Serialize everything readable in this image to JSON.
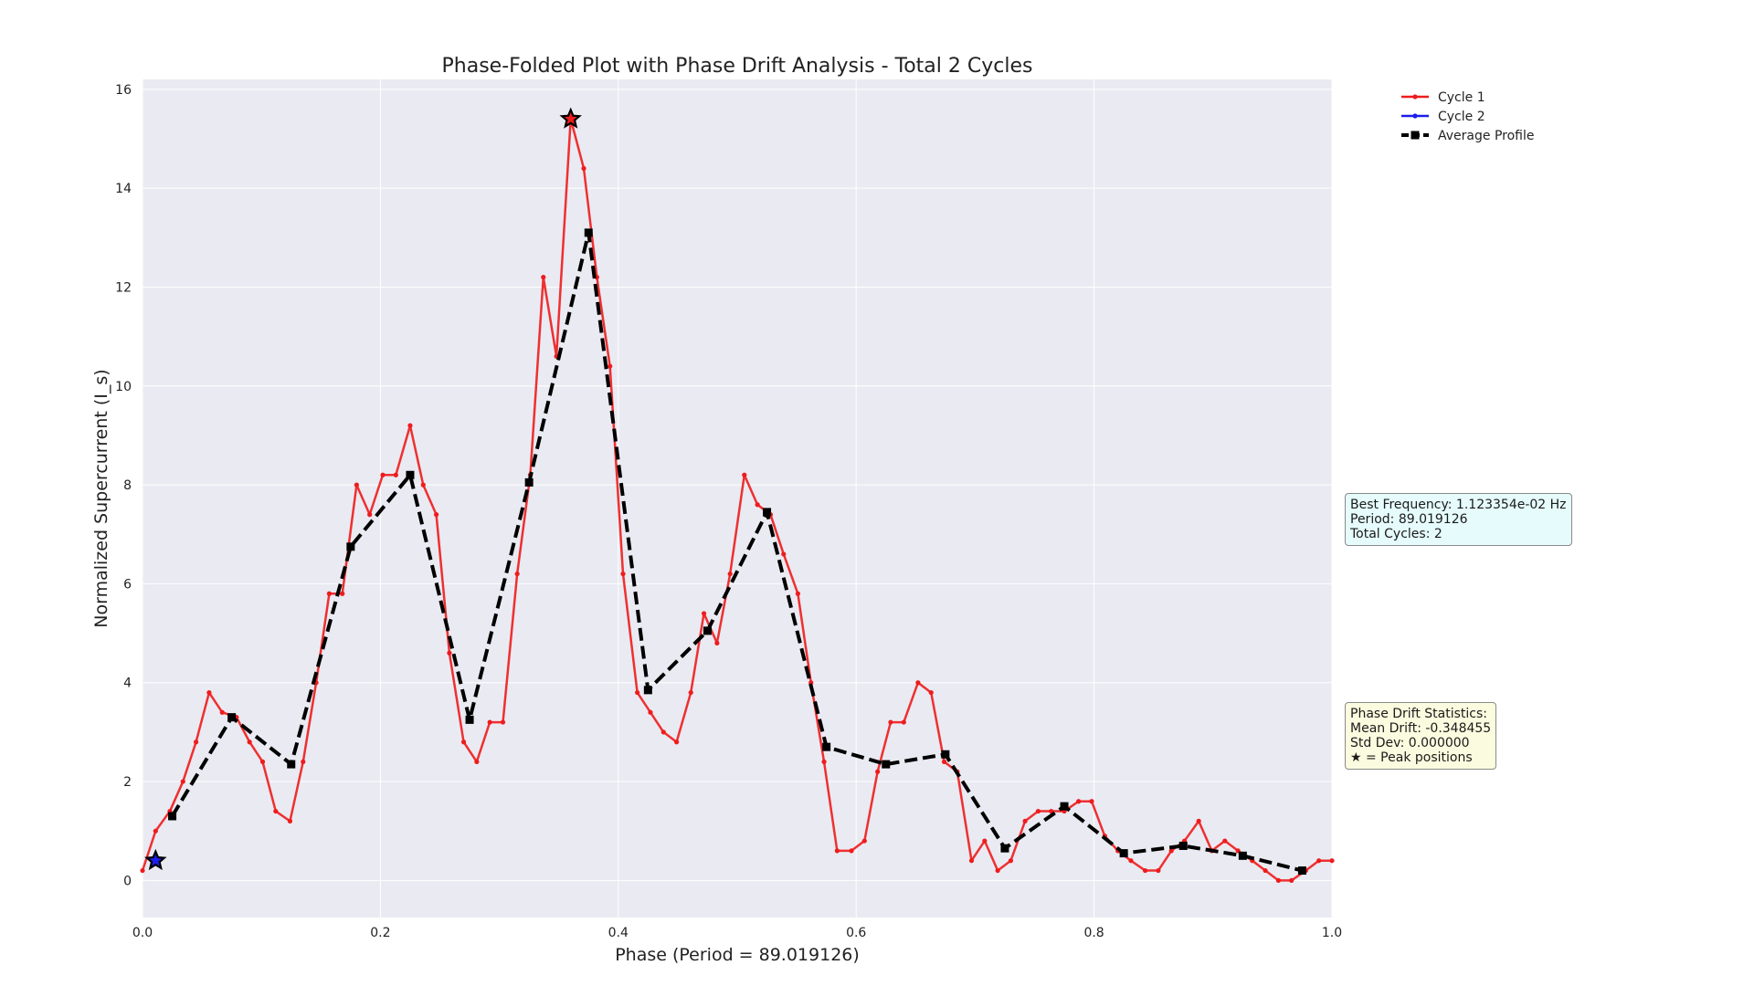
{
  "chart_data": {
    "type": "line",
    "title": "Phase-Folded Plot with Phase Drift Analysis - Total 2 Cycles",
    "xlabel": "Phase (Period = 89.019126)",
    "ylabel": "Normalized Supercurrent (I_s)",
    "xlim": [
      0.0,
      1.0
    ],
    "ylim": [
      -0.75,
      16.2
    ],
    "xticks": [
      "0.0",
      "0.2",
      "0.4",
      "0.6",
      "0.8",
      "1.0"
    ],
    "xtick_values": [
      0.0,
      0.2,
      0.4,
      0.6,
      0.8,
      1.0
    ],
    "yticks": [
      "0",
      "2",
      "4",
      "6",
      "8",
      "10",
      "12",
      "14",
      "16"
    ],
    "ytick_values": [
      0,
      2,
      4,
      6,
      8,
      10,
      12,
      14,
      16
    ],
    "grid": true,
    "legend_position": "top-right outside plot",
    "series": [
      {
        "name": "Cycle 1",
        "color": "#ee1c1c",
        "style": "solid-dot",
        "points": [
          [
            0.0,
            0.2
          ],
          [
            0.011,
            1.0
          ],
          [
            0.023,
            1.4
          ],
          [
            0.034,
            2.0
          ],
          [
            0.045,
            2.8
          ],
          [
            0.056,
            3.8
          ],
          [
            0.067,
            3.4
          ],
          [
            0.079,
            3.3
          ],
          [
            0.09,
            2.8
          ],
          [
            0.101,
            2.4
          ],
          [
            0.112,
            1.4
          ],
          [
            0.124,
            1.2
          ],
          [
            0.135,
            2.4
          ],
          [
            0.146,
            4.0
          ],
          [
            0.157,
            5.8
          ],
          [
            0.168,
            5.8
          ],
          [
            0.18,
            8.0
          ],
          [
            0.191,
            7.4
          ],
          [
            0.202,
            8.2
          ],
          [
            0.213,
            8.2
          ],
          [
            0.225,
            9.2
          ],
          [
            0.236,
            8.0
          ],
          [
            0.247,
            7.4
          ],
          [
            0.258,
            4.6
          ],
          [
            0.27,
            2.8
          ],
          [
            0.281,
            2.4
          ],
          [
            0.292,
            3.2
          ],
          [
            0.303,
            3.2
          ],
          [
            0.315,
            6.2
          ],
          [
            0.326,
            8.2
          ],
          [
            0.337,
            12.2
          ],
          [
            0.348,
            10.6
          ],
          [
            0.36,
            15.4
          ],
          [
            0.371,
            14.4
          ],
          [
            0.382,
            12.2
          ],
          [
            0.393,
            10.4
          ],
          [
            0.404,
            6.2
          ],
          [
            0.416,
            3.8
          ],
          [
            0.427,
            3.4
          ],
          [
            0.438,
            3.0
          ],
          [
            0.449,
            2.8
          ],
          [
            0.461,
            3.8
          ],
          [
            0.472,
            5.4
          ],
          [
            0.483,
            4.8
          ],
          [
            0.494,
            6.2
          ],
          [
            0.506,
            8.2
          ],
          [
            0.517,
            7.6
          ],
          [
            0.528,
            7.4
          ],
          [
            0.539,
            6.6
          ],
          [
            0.551,
            5.8
          ],
          [
            0.562,
            4.0
          ],
          [
            0.573,
            2.4
          ],
          [
            0.584,
            0.6
          ],
          [
            0.596,
            0.6
          ],
          [
            0.607,
            0.8
          ],
          [
            0.618,
            2.2
          ],
          [
            0.629,
            3.2
          ],
          [
            0.64,
            3.2
          ],
          [
            0.652,
            4.0
          ],
          [
            0.663,
            3.8
          ],
          [
            0.674,
            2.4
          ],
          [
            0.685,
            2.2
          ],
          [
            0.697,
            0.4
          ],
          [
            0.708,
            0.8
          ],
          [
            0.719,
            0.2
          ],
          [
            0.73,
            0.4
          ],
          [
            0.742,
            1.2
          ],
          [
            0.753,
            1.4
          ],
          [
            0.764,
            1.4
          ],
          [
            0.775,
            1.4
          ],
          [
            0.787,
            1.6
          ],
          [
            0.798,
            1.6
          ],
          [
            0.809,
            0.9
          ],
          [
            0.82,
            0.6
          ],
          [
            0.831,
            0.4
          ],
          [
            0.843,
            0.2
          ],
          [
            0.854,
            0.2
          ],
          [
            0.865,
            0.6
          ],
          [
            0.876,
            0.8
          ],
          [
            0.888,
            1.2
          ],
          [
            0.899,
            0.6
          ],
          [
            0.91,
            0.8
          ],
          [
            0.921,
            0.6
          ],
          [
            0.933,
            0.4
          ],
          [
            0.944,
            0.2
          ],
          [
            0.955,
            0.0
          ],
          [
            0.966,
            0.0
          ],
          [
            0.978,
            0.2
          ],
          [
            0.989,
            0.4
          ],
          [
            1.0,
            0.4
          ]
        ]
      },
      {
        "name": "Cycle 2",
        "color": "#1c1ced",
        "style": "solid-dot",
        "points": []
      },
      {
        "name": "Average Profile",
        "color": "#000000",
        "style": "dashed-square",
        "points": [
          [
            0.025,
            1.3
          ],
          [
            0.075,
            3.3
          ],
          [
            0.125,
            2.35
          ],
          [
            0.175,
            6.75
          ],
          [
            0.225,
            8.2
          ],
          [
            0.275,
            3.25
          ],
          [
            0.325,
            8.05
          ],
          [
            0.375,
            13.1
          ],
          [
            0.425,
            3.85
          ],
          [
            0.475,
            5.05
          ],
          [
            0.525,
            7.45
          ],
          [
            0.575,
            2.7
          ],
          [
            0.625,
            2.35
          ],
          [
            0.675,
            2.55
          ],
          [
            0.725,
            0.65
          ],
          [
            0.775,
            1.5
          ],
          [
            0.825,
            0.55
          ],
          [
            0.875,
            0.7
          ],
          [
            0.925,
            0.5
          ],
          [
            0.975,
            0.2
          ]
        ]
      }
    ],
    "peak_markers": [
      {
        "x": 0.36,
        "y": 15.4,
        "color": "#ee1c1c"
      },
      {
        "x": 0.011,
        "y": 0.4,
        "color": "#1c1ced"
      }
    ]
  },
  "info_frequency": {
    "line1": "Best Frequency: 1.123354e-02 Hz",
    "line2": "Period: 89.019126",
    "line3": "Total Cycles: 2"
  },
  "info_drift": {
    "line1": "Phase Drift Statistics:",
    "line2": "Mean Drift: -0.348455",
    "line3": "Std Dev: 0.000000",
    "line4": "★ = Peak positions"
  }
}
